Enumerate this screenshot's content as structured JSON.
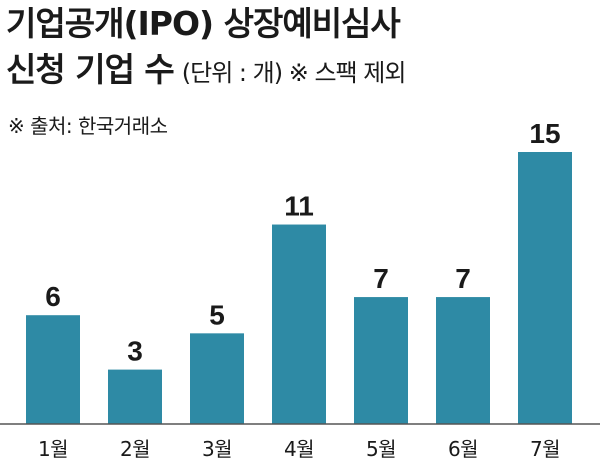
{
  "title_line1": "기업공개(IPO) 상장예비심사",
  "title_line2": "신청 기업 수",
  "unit_note": "(단위 : 개) ※ 스팩 제외",
  "source": "※ 출처: 한국거래소",
  "colors": {
    "bar": "#2e8aa5",
    "text": "#1a1a1a"
  },
  "chart_data": {
    "type": "bar",
    "title": "기업공개(IPO) 상장예비심사 신청 기업 수",
    "categories": [
      "1월",
      "2월",
      "3월",
      "4월",
      "5월",
      "6월",
      "7월"
    ],
    "values": [
      6,
      3,
      5,
      11,
      7,
      7,
      15
    ],
    "ylim": [
      0,
      15
    ],
    "grid": false,
    "legend": "none"
  }
}
